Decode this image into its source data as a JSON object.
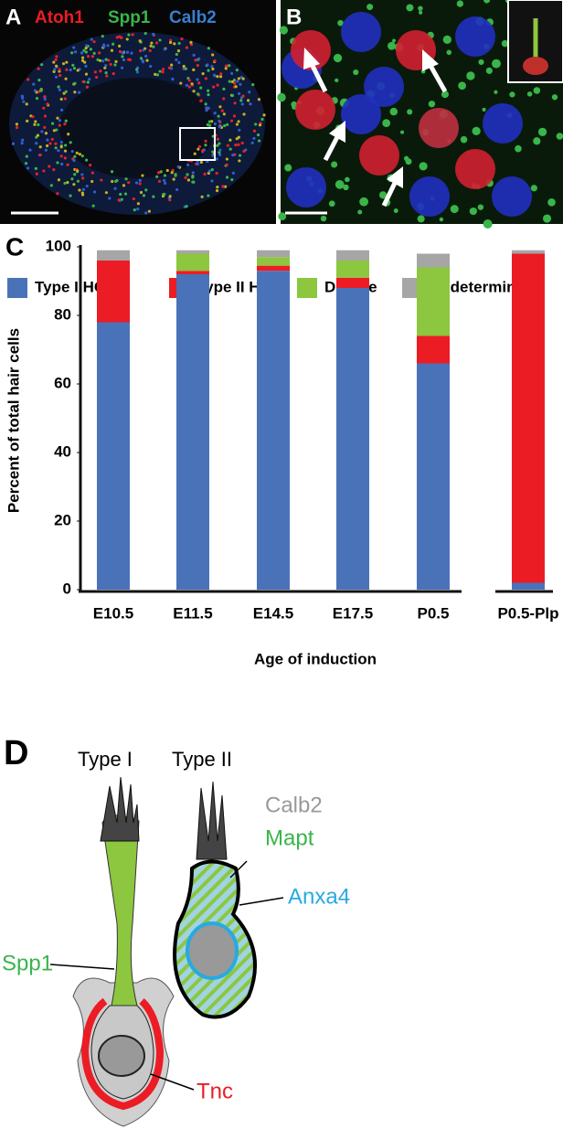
{
  "panel_a": {
    "label": "A",
    "stains": [
      "Atoh1",
      "Spp1",
      "Calb2"
    ]
  },
  "panel_b": {
    "label": "B"
  },
  "chart_data": {
    "type": "bar",
    "stacked": true,
    "panel_label": "C",
    "y_label": "Percent of total hair cells",
    "x_label": "Age of induction",
    "categories": [
      "E10.5",
      "E11.5",
      "E14.5",
      "E17.5",
      "P0.5",
      "P0.5-Plp"
    ],
    "series": [
      {
        "name": "Type I HC",
        "color": "#4a72b8",
        "values": [
          78,
          92,
          93,
          88,
          66,
          2
        ]
      },
      {
        "name": "Type II HC",
        "color": "#ec1c24",
        "values": [
          18,
          1,
          1.5,
          3,
          8,
          96
        ]
      },
      {
        "name": "Double",
        "color": "#8dc63f",
        "values": [
          0,
          5,
          2.5,
          5,
          20,
          0
        ]
      },
      {
        "name": "Undetermined",
        "color": "#a6a6a6",
        "values": [
          3,
          1,
          2,
          3,
          4,
          1
        ]
      }
    ],
    "ylim": [
      0,
      100
    ],
    "yticks": [
      0,
      20,
      40,
      60,
      80,
      100
    ]
  },
  "panel_d": {
    "label": "D",
    "cell_types": [
      "Type I",
      "Type II"
    ],
    "markers": [
      "Calb2",
      "Mapt",
      "Anxa4",
      "Spp1",
      "Tnc"
    ]
  }
}
